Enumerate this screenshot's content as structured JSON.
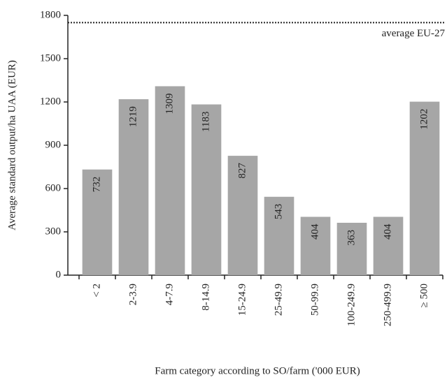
{
  "chart_data": {
    "type": "bar",
    "x_label": "Farm category according to SO/farm ('000 EUR)",
    "y_label": "Average standard output/ha UAA (EUR)",
    "categories": [
      "< 2",
      "2-3.9",
      "4-7.9",
      "8-14.9",
      "15-24.9",
      "25-49.9",
      "50-99.9",
      "100-249.9",
      "250-499.9",
      "≥ 500"
    ],
    "values": [
      732,
      1219,
      1309,
      1183,
      827,
      543,
      404,
      363,
      404,
      1202
    ],
    "color": "#a6a6a6",
    "ylim": [
      0,
      1800
    ],
    "yticks": [
      0,
      300,
      600,
      900,
      1200,
      1500,
      1800
    ],
    "reference": {
      "value": 1750,
      "label": "average EU-27"
    }
  }
}
